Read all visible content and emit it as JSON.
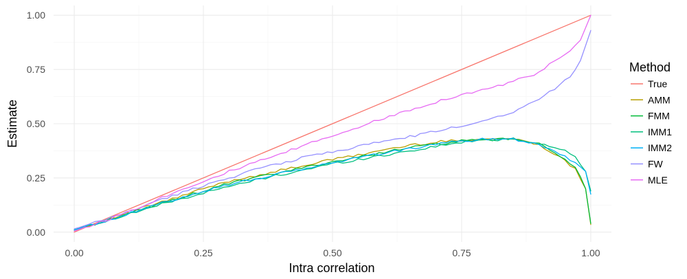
{
  "chart_data": {
    "type": "line",
    "title": "",
    "xlabel": "Intra correlation",
    "ylabel": "Estimate",
    "xlim": [
      -0.04,
      1.04
    ],
    "ylim": [
      -0.045,
      1.045
    ],
    "x_ticks": [
      0,
      0.25,
      0.5,
      0.75,
      1
    ],
    "x_tick_labels": [
      "0.00",
      "0.25",
      "0.50",
      "0.75",
      "1.00"
    ],
    "y_ticks": [
      0,
      0.25,
      0.5,
      0.75,
      1
    ],
    "y_tick_labels": [
      "0.00",
      "0.25",
      "0.50",
      "0.75",
      "1.00"
    ],
    "grid": true,
    "legend": {
      "title": "Method",
      "position": "right"
    },
    "series": [
      {
        "name": "True",
        "color": "#F8766D",
        "x": [
          0,
          1
        ],
        "y": [
          0,
          1
        ]
      },
      {
        "name": "AMM",
        "color": "#B79F00",
        "x": [
          0,
          0.05,
          0.1,
          0.15,
          0.2,
          0.25,
          0.3,
          0.35,
          0.4,
          0.45,
          0.5,
          0.55,
          0.6,
          0.65,
          0.7,
          0.75,
          0.8,
          0.85,
          0.9,
          0.95,
          0.97,
          0.99,
          1
        ],
        "y": [
          0.01,
          0.045,
          0.085,
          0.125,
          0.16,
          0.2,
          0.235,
          0.26,
          0.285,
          0.31,
          0.335,
          0.355,
          0.38,
          0.4,
          0.415,
          0.425,
          0.43,
          0.43,
          0.405,
          0.33,
          0.29,
          0.2,
          0.035
        ]
      },
      {
        "name": "FMM",
        "color": "#00BA38",
        "x": [
          0,
          0.05,
          0.1,
          0.15,
          0.2,
          0.25,
          0.3,
          0.35,
          0.4,
          0.45,
          0.5,
          0.55,
          0.6,
          0.65,
          0.7,
          0.75,
          0.8,
          0.85,
          0.9,
          0.95,
          0.97,
          0.99,
          1
        ],
        "y": [
          0.01,
          0.045,
          0.08,
          0.12,
          0.155,
          0.19,
          0.225,
          0.25,
          0.275,
          0.3,
          0.325,
          0.345,
          0.37,
          0.39,
          0.405,
          0.42,
          0.425,
          0.43,
          0.405,
          0.34,
          0.3,
          0.2,
          0.04
        ]
      },
      {
        "name": "IMM1",
        "color": "#00BF7D",
        "x": [
          0,
          0.05,
          0.1,
          0.15,
          0.2,
          0.25,
          0.3,
          0.35,
          0.4,
          0.45,
          0.5,
          0.55,
          0.6,
          0.65,
          0.7,
          0.75,
          0.8,
          0.85,
          0.9,
          0.95,
          0.97,
          0.99,
          1
        ],
        "y": [
          0.01,
          0.045,
          0.08,
          0.115,
          0.15,
          0.18,
          0.21,
          0.24,
          0.265,
          0.29,
          0.315,
          0.335,
          0.355,
          0.375,
          0.395,
          0.415,
          0.425,
          0.43,
          0.41,
          0.375,
          0.345,
          0.28,
          0.19
        ]
      },
      {
        "name": "IMM2",
        "color": "#00B0F6",
        "x": [
          0,
          0.05,
          0.1,
          0.15,
          0.2,
          0.25,
          0.3,
          0.35,
          0.4,
          0.45,
          0.5,
          0.55,
          0.6,
          0.65,
          0.7,
          0.75,
          0.8,
          0.85,
          0.9,
          0.95,
          0.97,
          0.99,
          1
        ],
        "y": [
          0.01,
          0.045,
          0.08,
          0.12,
          0.155,
          0.19,
          0.22,
          0.245,
          0.27,
          0.295,
          0.32,
          0.345,
          0.365,
          0.385,
          0.405,
          0.42,
          0.43,
          0.43,
          0.405,
          0.35,
          0.32,
          0.28,
          0.175
        ]
      },
      {
        "name": "FW",
        "color": "#9590FF",
        "x": [
          0,
          0.05,
          0.1,
          0.15,
          0.2,
          0.25,
          0.3,
          0.35,
          0.4,
          0.45,
          0.5,
          0.55,
          0.6,
          0.65,
          0.7,
          0.75,
          0.8,
          0.85,
          0.9,
          0.93,
          0.96,
          0.98,
          1
        ],
        "y": [
          0.015,
          0.05,
          0.09,
          0.135,
          0.175,
          0.215,
          0.25,
          0.29,
          0.315,
          0.35,
          0.37,
          0.395,
          0.42,
          0.44,
          0.465,
          0.49,
          0.52,
          0.555,
          0.615,
          0.66,
          0.72,
          0.79,
          0.93
        ]
      },
      {
        "name": "MLE",
        "color": "#E76BF3",
        "x": [
          0,
          0.05,
          0.1,
          0.15,
          0.2,
          0.25,
          0.3,
          0.35,
          0.4,
          0.45,
          0.5,
          0.55,
          0.6,
          0.65,
          0.7,
          0.75,
          0.8,
          0.85,
          0.9,
          0.93,
          0.96,
          0.98,
          1
        ],
        "y": [
          0.005,
          0.045,
          0.09,
          0.14,
          0.19,
          0.235,
          0.28,
          0.32,
          0.36,
          0.405,
          0.445,
          0.485,
          0.525,
          0.565,
          0.6,
          0.635,
          0.66,
          0.695,
          0.735,
          0.79,
          0.83,
          0.885,
          1
        ]
      }
    ]
  }
}
